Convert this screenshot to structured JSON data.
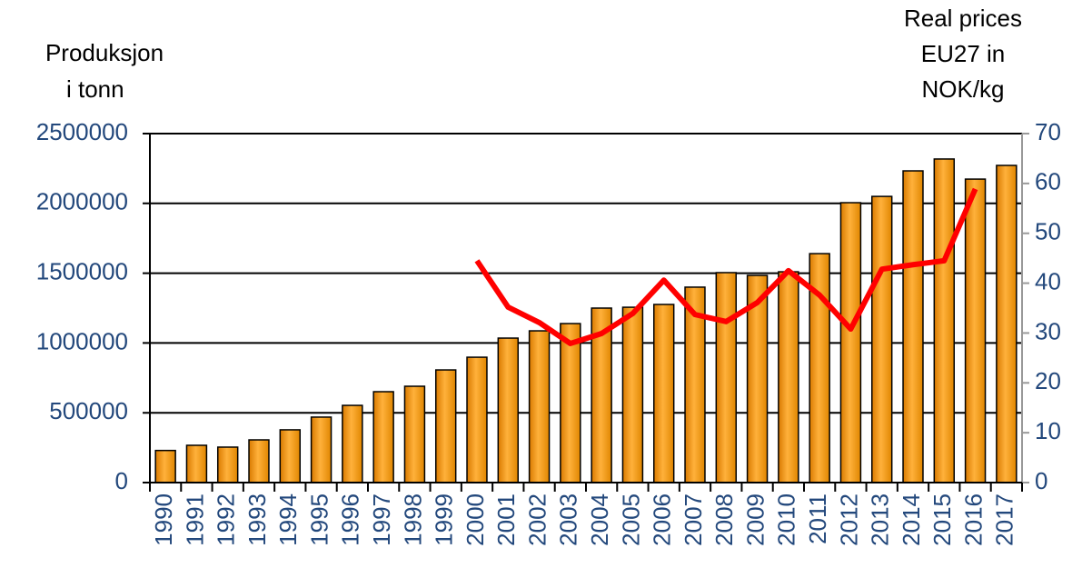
{
  "chart_data": {
    "type": "bar",
    "y_label": [
      "Produksjon",
      "i tonn"
    ],
    "y2_label": [
      "Real prices",
      "EU27 in",
      "NOK/kg"
    ],
    "categories": [
      "1990",
      "1991",
      "1992",
      "1993",
      "1994",
      "1995",
      "1996",
      "1997",
      "1998",
      "1999",
      "2000",
      "2001",
      "2002",
      "2003",
      "2004",
      "2005",
      "2006",
      "2007",
      "2008",
      "2009",
      "2010",
      "2011",
      "2012",
      "2013",
      "2014",
      "2015",
      "2016",
      "2017"
    ],
    "series": [
      {
        "type": "bar",
        "color": "#f39a1e",
        "values": [
          230000,
          267000,
          254000,
          306000,
          378000,
          469000,
          553000,
          651000,
          690000,
          807000,
          898000,
          1035000,
          1087000,
          1139000,
          1250000,
          1256000,
          1276000,
          1400000,
          1504000,
          1484000,
          1510000,
          1640000,
          2005000,
          2050000,
          2233000,
          2318000,
          2174000,
          2272000
        ]
      },
      {
        "type": "line",
        "axis": "y2",
        "color": "#ff0000",
        "values": [
          null,
          null,
          null,
          null,
          null,
          null,
          null,
          null,
          null,
          null,
          44.5,
          35.2,
          32.1,
          27.9,
          29.9,
          33.9,
          40.6,
          33.7,
          32.3,
          36.1,
          42.5,
          37.6,
          30.8,
          42.8,
          43.7,
          44.5,
          58.9,
          null
        ]
      }
    ],
    "ylim": [
      0,
      2500000
    ],
    "yticks": [
      0,
      500000,
      1000000,
      1500000,
      2000000,
      2500000
    ],
    "y2lim": [
      0,
      70
    ],
    "y2ticks": [
      0,
      10,
      20,
      30,
      40,
      50,
      60,
      70
    ],
    "grid": true
  }
}
